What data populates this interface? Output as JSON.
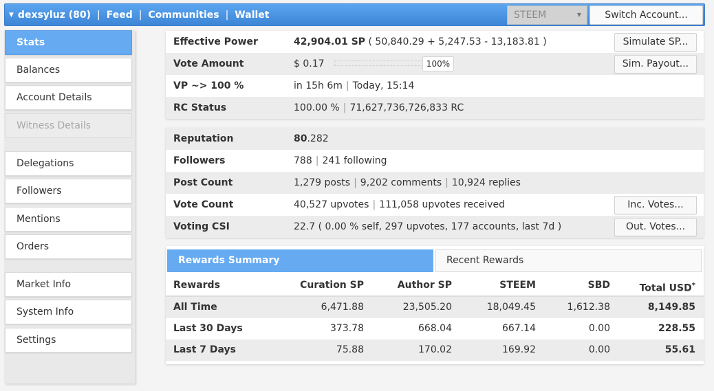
{
  "topbar": {
    "user": "dexsyluz (80)",
    "nav": [
      "Feed",
      "Communities",
      "Wallet"
    ],
    "token_select": "STEEM",
    "switch_account": "Switch Account..."
  },
  "sidebar": {
    "items": [
      {
        "label": "Stats",
        "state": "active"
      },
      {
        "label": "Balances",
        "state": "normal"
      },
      {
        "label": "Account Details",
        "state": "normal"
      },
      {
        "label": "Witness Details",
        "state": "disabled"
      },
      {
        "label": "Delegations",
        "state": "normal"
      },
      {
        "label": "Followers",
        "state": "normal"
      },
      {
        "label": "Mentions",
        "state": "normal"
      },
      {
        "label": "Orders",
        "state": "normal"
      },
      {
        "label": "Market Info",
        "state": "normal"
      },
      {
        "label": "System Info",
        "state": "normal"
      },
      {
        "label": "Settings",
        "state": "normal"
      }
    ]
  },
  "stats": {
    "effective_power": {
      "label": "Effective Power",
      "value": "42,904.01 SP",
      "detail": " ( 50,840.29 + 5,247.53 - 13,183.81 )",
      "button": "Simulate SP..."
    },
    "vote_amount": {
      "label": "Vote Amount",
      "value": "$ 0.17",
      "slider_pct": "100%",
      "button": "Sim. Payout..."
    },
    "vp": {
      "label": "VP ~> 100 %",
      "value": "in 15h 6m",
      "value2": "Today, 15:14"
    },
    "rc": {
      "label": "RC Status",
      "value": "100.00 %",
      "value2": "71,627,736,726,833 RC"
    },
    "reputation": {
      "label": "Reputation",
      "value_int": "80",
      "value_dec": ".282"
    },
    "followers": {
      "label": "Followers",
      "value": "788",
      "value2": "241 following"
    },
    "post_count": {
      "label": "Post Count",
      "value": "1,279 posts",
      "value2": "9,202 comments",
      "value3": "10,924 replies"
    },
    "vote_count": {
      "label": "Vote Count",
      "value": "40,527 upvotes",
      "value2": "111,058 upvotes received",
      "button": "Inc. Votes..."
    },
    "voting_csi": {
      "label": "Voting CSI",
      "value": "22.7 ( 0.00 % self, 297 upvotes, 177 accounts, last 7d )",
      "button": "Out. Votes..."
    }
  },
  "rewards": {
    "tabs": [
      "Rewards Summary",
      "Recent Rewards"
    ],
    "headers": [
      "Rewards",
      "Curation SP",
      "Author SP",
      "STEEM",
      "SBD",
      "Total USD"
    ],
    "total_marker": "*",
    "rows": [
      [
        "All Time",
        "6,471.88",
        "23,505.20",
        "18,049.45",
        "1,612.38",
        "8,149.85"
      ],
      [
        "Last 30 Days",
        "373.78",
        "668.04",
        "667.14",
        "0.00",
        "228.55"
      ],
      [
        "Last 7 Days",
        "75.88",
        "170.02",
        "169.92",
        "0.00",
        "55.61"
      ]
    ]
  }
}
